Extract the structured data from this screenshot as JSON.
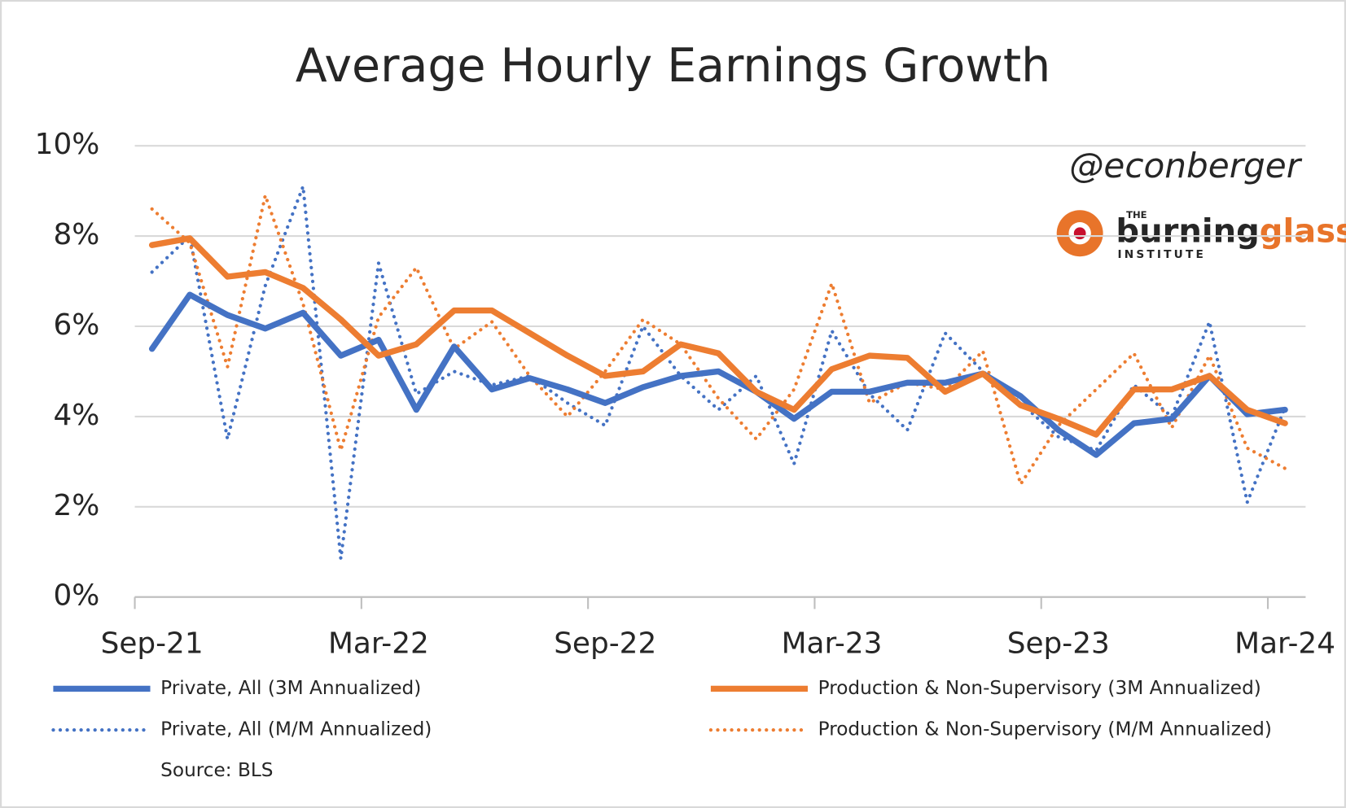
{
  "chart_data": {
    "type": "line",
    "title": "Average Hourly Earnings Growth",
    "annotations": [
      "@econberger"
    ],
    "logo": {
      "top": "THE",
      "main": "burning",
      "accent": "glass",
      "bottom": "INSTITUTE"
    },
    "source": "Source: BLS",
    "categories": [
      "Sep-21",
      null,
      null,
      null,
      null,
      null,
      "Mar-22",
      null,
      null,
      null,
      null,
      null,
      "Sep-22",
      null,
      null,
      null,
      null,
      null,
      "Mar-23",
      null,
      null,
      null,
      null,
      null,
      "Sep-23",
      null,
      null,
      null,
      null,
      null,
      "Mar-24"
    ],
    "ylim": [
      0,
      10
    ],
    "yticks": [
      {
        "value": 0,
        "label": "0%"
      },
      {
        "value": 2,
        "label": "2%"
      },
      {
        "value": 4,
        "label": "4%"
      },
      {
        "value": 6,
        "label": "6%"
      },
      {
        "value": 8,
        "label": "8%"
      },
      {
        "value": 10,
        "label": "10%"
      }
    ],
    "grid": true,
    "series": [
      {
        "name": "Private, All (3M Annualized)",
        "color": "#4472c4",
        "style": "solid",
        "values": [
          5.5,
          6.7,
          6.25,
          5.95,
          6.3,
          5.35,
          5.7,
          4.15,
          5.55,
          4.6,
          4.85,
          4.6,
          4.3,
          4.65,
          4.9,
          5.0,
          4.55,
          3.95,
          4.55,
          4.55,
          4.75,
          4.75,
          4.95,
          4.45,
          3.7,
          3.15,
          3.85,
          3.95,
          4.9,
          4.05,
          4.15
        ]
      },
      {
        "name": "Production & Non-Supervisory (3M Annualized)",
        "color": "#ed7d31",
        "style": "solid",
        "values": [
          7.8,
          7.95,
          7.1,
          7.2,
          6.85,
          6.15,
          5.35,
          5.6,
          6.35,
          6.35,
          5.85,
          5.35,
          4.9,
          5.0,
          5.6,
          5.4,
          4.55,
          4.15,
          5.05,
          5.35,
          5.3,
          4.55,
          4.95,
          4.25,
          3.95,
          3.6,
          4.6,
          4.6,
          4.9,
          4.15,
          3.85
        ]
      },
      {
        "name": "Private, All (M/M Annualized)",
        "color": "#4472c4",
        "style": "dotted",
        "values": [
          7.2,
          8.0,
          3.5,
          6.9,
          9.1,
          0.85,
          7.4,
          4.5,
          5.0,
          4.7,
          4.9,
          4.3,
          3.8,
          6.0,
          4.9,
          4.15,
          4.9,
          2.95,
          5.9,
          4.5,
          3.7,
          5.85,
          5.0,
          4.3,
          3.55,
          3.25,
          4.7,
          4.0,
          6.1,
          2.1,
          4.2
        ]
      },
      {
        "name": "Production & Non-Supervisory (M/M Annualized)",
        "color": "#ed7d31",
        "style": "dotted",
        "values": [
          8.6,
          7.85,
          5.1,
          8.9,
          6.5,
          3.25,
          6.2,
          7.3,
          5.5,
          6.1,
          4.9,
          4.0,
          5.0,
          6.15,
          5.6,
          4.4,
          3.5,
          4.6,
          6.95,
          4.3,
          4.75,
          4.6,
          5.45,
          2.5,
          3.8,
          4.6,
          5.4,
          3.75,
          5.35,
          3.3,
          2.85
        ]
      }
    ]
  }
}
